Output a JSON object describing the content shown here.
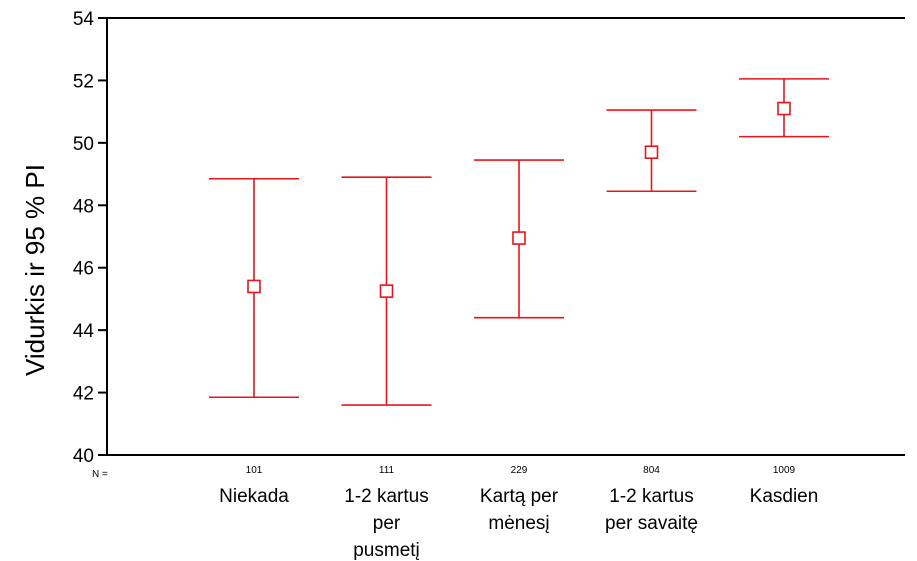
{
  "chart_data": {
    "type": "errorbar",
    "ylabel": "Vidurkis ir  95 % PI",
    "xlabel": "",
    "ylim": [
      40,
      54
    ],
    "yticks": [
      "40",
      "42",
      "44",
      "46",
      "48",
      "50",
      "52",
      "54"
    ],
    "categories": [
      "Niekada",
      "1-2 kartus per pusmetį",
      "Kartą per mėnesį",
      "1-2 kartus per savaitę",
      "Kasdien"
    ],
    "category_lines": [
      [
        "Niekada"
      ],
      [
        "1-2 kartus",
        "per",
        "pusmetį"
      ],
      [
        "Kartą per",
        "mėnesį"
      ],
      [
        "1-2 kartus",
        "per savaitę"
      ],
      [
        "Kasdien"
      ]
    ],
    "n_labels": [
      "101",
      "111",
      "229",
      "804",
      "1009"
    ],
    "n_prefix": "N =",
    "means": [
      45.4,
      45.25,
      46.95,
      49.7,
      51.1
    ],
    "lower": [
      41.85,
      41.6,
      44.4,
      48.45,
      50.2
    ],
    "upper": [
      48.85,
      48.9,
      49.45,
      51.05,
      52.05
    ],
    "color": "#e8141c",
    "grid": false
  }
}
